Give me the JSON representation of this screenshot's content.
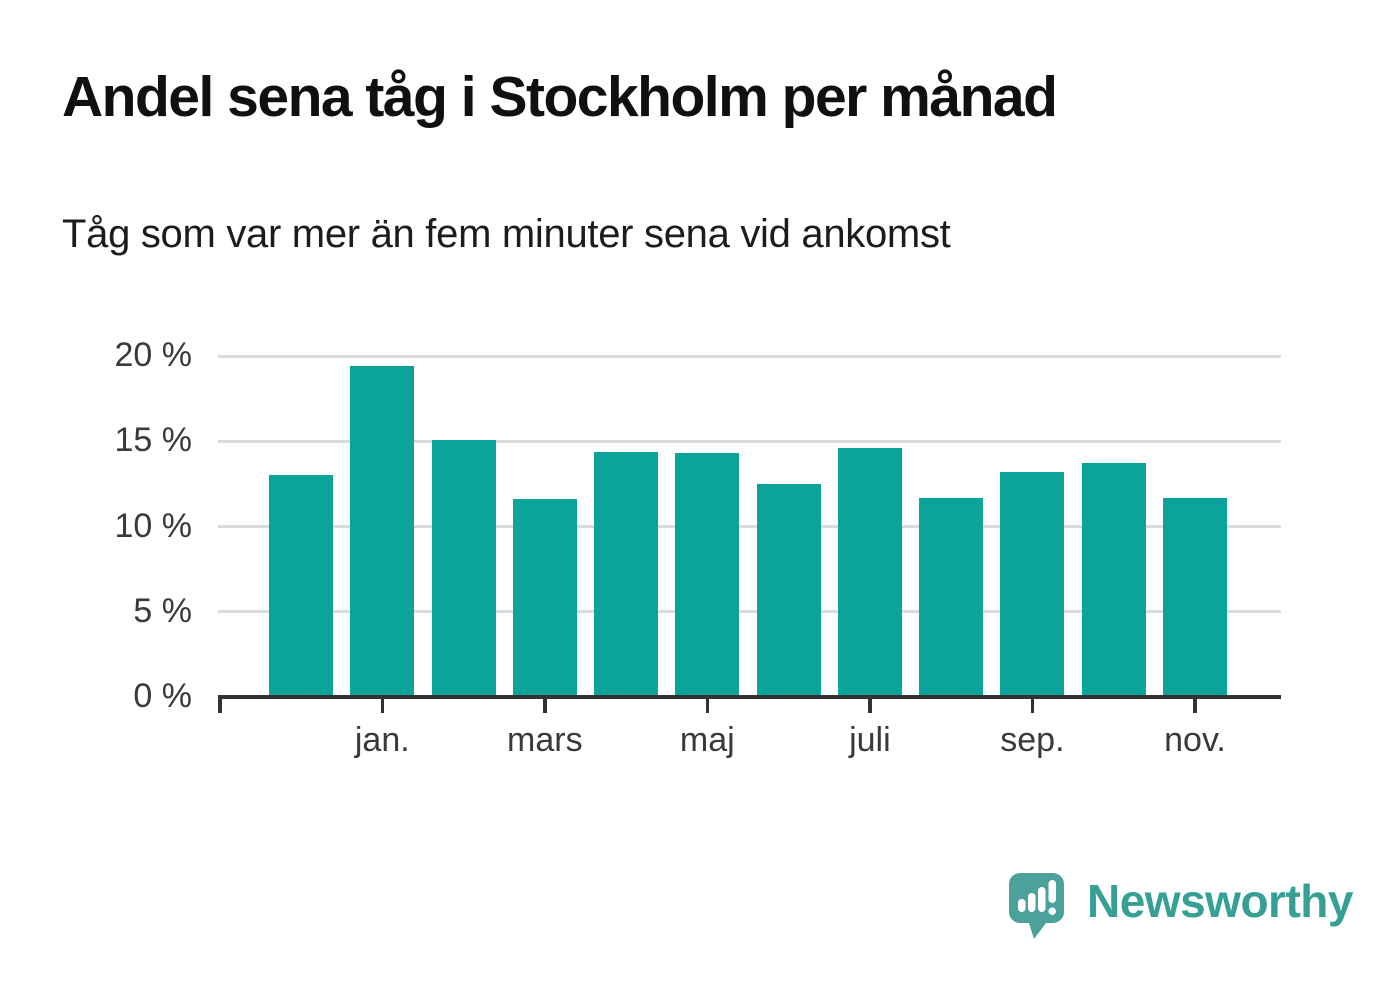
{
  "header": {
    "title": "Andel sena tåg i Stockholm per månad",
    "subtitle": "Tåg som var mer än fem minuter sena vid ankomst"
  },
  "chart_data": {
    "type": "bar",
    "title": "Andel sena tåg i Stockholm per månad",
    "subtitle": "Tåg som var mer än fem minuter sena vid ankomst",
    "categories": [
      "",
      "jan.",
      "",
      "mars",
      "",
      "maj",
      "",
      "juli",
      "",
      "sep.",
      "",
      "nov."
    ],
    "values": [
      13.0,
      19.4,
      15.1,
      11.6,
      14.4,
      14.3,
      12.5,
      14.6,
      11.7,
      13.2,
      13.7,
      11.7
    ],
    "unit": "%",
    "xlabel": "",
    "ylabel": "",
    "ylim": [
      0,
      20
    ],
    "y_tick_values": [
      0,
      5,
      10,
      15,
      20
    ],
    "y_tick_labels": [
      "0 %",
      "5 %",
      "10 %",
      "15 %",
      "20 %"
    ],
    "grid": true,
    "gridline_values": [
      5,
      10,
      15,
      20
    ],
    "legend": "none",
    "bar_color": "#0aa49a"
  },
  "colors": {
    "bar": "#0aa49a",
    "gridline": "#dbdbdb",
    "axis": "#333333",
    "tick_label": "#3a3a3a",
    "title": "#101010",
    "subtitle": "#1c1c1c",
    "logo_icon": "#4aa29a",
    "logo_text": "#35a093"
  },
  "branding": {
    "logo_text": "Newsworthy"
  }
}
